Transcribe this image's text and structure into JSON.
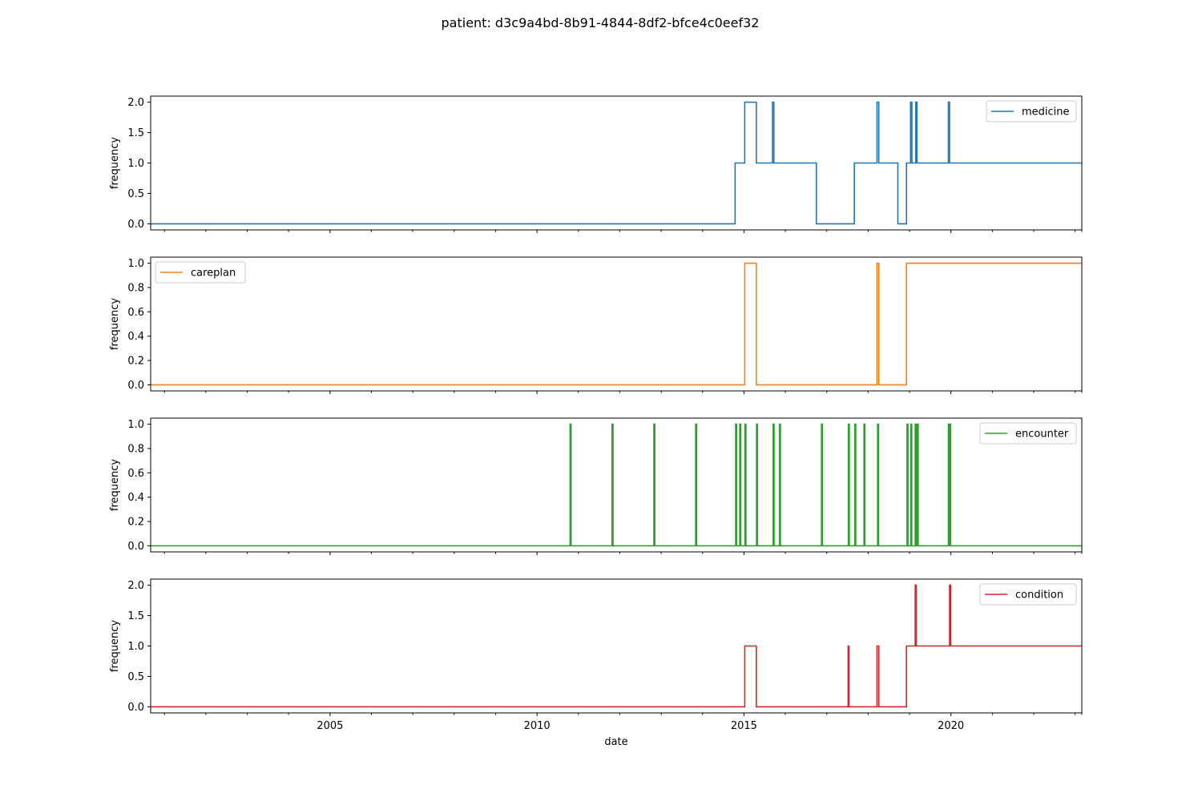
{
  "figure": {
    "title": "patient: d3c9a4bd-8b91-4844-8df2-bfce4c0eef32",
    "xlabel": "date"
  },
  "chart_data": [
    {
      "type": "line",
      "series": [
        {
          "name": "medicine",
          "color": "#1f77b4",
          "steps": [
            [
              "2000-09-01",
              0
            ],
            [
              "2014-10-15",
              1
            ],
            [
              "2015-01-08",
              2
            ],
            [
              "2015-04-20",
              1
            ],
            [
              "2015-09-10",
              2
            ],
            [
              "2015-09-22",
              1
            ],
            [
              "2016-10-01",
              0
            ],
            [
              "2017-09-01",
              1
            ],
            [
              "2018-03-20",
              2
            ],
            [
              "2018-04-05",
              1
            ],
            [
              "2018-09-20",
              0
            ],
            [
              "2018-12-05",
              1
            ],
            [
              "2019-01-10",
              2
            ],
            [
              "2019-01-22",
              1
            ],
            [
              "2019-02-25",
              2
            ],
            [
              "2019-03-08",
              1
            ],
            [
              "2019-12-10",
              2
            ],
            [
              "2019-12-20",
              1
            ],
            [
              "2023-03-01",
              1
            ]
          ]
        }
      ],
      "xlim": [
        "2000-09-01",
        "2023-03-01"
      ],
      "ylim": [
        -0.1,
        2.1
      ],
      "yticks": [
        0.0,
        0.5,
        1.0,
        1.5,
        2.0
      ],
      "ytick_labels": [
        "0.0",
        "0.5",
        "1.0",
        "1.5",
        "2.0"
      ],
      "xticks": [
        "2005",
        "2010",
        "2015",
        "2020"
      ],
      "ylabel": "frequency",
      "legend_position": "upper right",
      "grid": false
    },
    {
      "type": "line",
      "series": [
        {
          "name": "careplan",
          "color": "#ff7f0e",
          "steps": [
            [
              "2000-09-01",
              0
            ],
            [
              "2015-01-08",
              1
            ],
            [
              "2015-04-20",
              0
            ],
            [
              "2018-03-20",
              1
            ],
            [
              "2018-04-05",
              0
            ],
            [
              "2018-12-05",
              1
            ],
            [
              "2023-03-01",
              1
            ]
          ]
        }
      ],
      "xlim": [
        "2000-09-01",
        "2023-03-01"
      ],
      "ylim": [
        -0.05,
        1.05
      ],
      "yticks": [
        0.0,
        0.2,
        0.4,
        0.6,
        0.8,
        1.0
      ],
      "ytick_labels": [
        "0.0",
        "0.2",
        "0.4",
        "0.6",
        "0.8",
        "1.0"
      ],
      "xticks": [
        "2005",
        "2010",
        "2015",
        "2020"
      ],
      "ylabel": "frequency",
      "legend_position": "upper left",
      "grid": false
    },
    {
      "type": "line",
      "series": [
        {
          "name": "encounter",
          "color": "#2ca02c",
          "spikes": [
            "2010-10-20",
            "2011-10-25",
            "2012-10-28",
            "2013-11-01",
            "2014-10-20",
            "2014-11-25",
            "2015-01-10",
            "2015-04-22",
            "2015-09-15",
            "2015-11-10",
            "2016-11-15",
            "2017-07-10",
            "2017-09-05",
            "2017-11-25",
            "2018-03-25",
            "2018-12-10",
            "2019-01-12",
            "2019-02-20",
            "2019-03-10",
            "2019-12-10",
            "2019-12-20"
          ]
        }
      ],
      "xlim": [
        "2000-09-01",
        "2023-03-01"
      ],
      "ylim": [
        -0.05,
        1.05
      ],
      "yticks": [
        0.0,
        0.2,
        0.4,
        0.6,
        0.8,
        1.0
      ],
      "ytick_labels": [
        "0.0",
        "0.2",
        "0.4",
        "0.6",
        "0.8",
        "1.0"
      ],
      "xticks": [
        "2005",
        "2010",
        "2015",
        "2020"
      ],
      "ylabel": "frequency",
      "legend_position": "upper right",
      "grid": false
    },
    {
      "type": "line",
      "series": [
        {
          "name": "condition",
          "color": "#d62728",
          "steps": [
            [
              "2000-09-01",
              0
            ],
            [
              "2015-01-08",
              1
            ],
            [
              "2015-04-20",
              0
            ],
            [
              "2017-07-08",
              1
            ],
            [
              "2017-07-16",
              0
            ],
            [
              "2018-03-20",
              1
            ],
            [
              "2018-04-05",
              0
            ],
            [
              "2018-12-05",
              1
            ],
            [
              "2019-02-20",
              2
            ],
            [
              "2019-03-02",
              1
            ],
            [
              "2019-12-20",
              2
            ],
            [
              "2019-12-30",
              1
            ],
            [
              "2023-03-01",
              1
            ]
          ]
        }
      ],
      "xlim": [
        "2000-09-01",
        "2023-03-01"
      ],
      "ylim": [
        -0.1,
        2.1
      ],
      "yticks": [
        0.0,
        0.5,
        1.0,
        1.5,
        2.0
      ],
      "ytick_labels": [
        "0.0",
        "0.5",
        "1.0",
        "1.5",
        "2.0"
      ],
      "xticks": [
        "2005",
        "2010",
        "2015",
        "2020"
      ],
      "ylabel": "frequency",
      "legend_position": "upper right",
      "grid": false
    }
  ]
}
